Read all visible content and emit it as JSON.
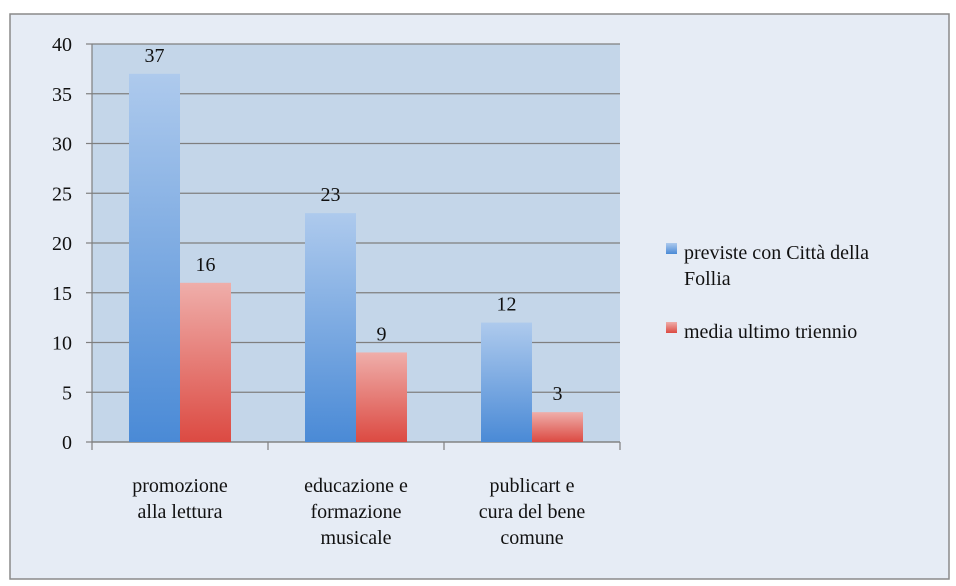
{
  "chart_data": {
    "type": "bar",
    "categories": [
      "promozione\nalla lettura",
      "educazione e\nformazione\nmusicale",
      "publicart e\ncura del bene\ncomune"
    ],
    "series": [
      {
        "name": "previste con Città della\nFollia",
        "color": "#4a8ad6",
        "values": [
          37,
          23,
          12
        ]
      },
      {
        "name": "media ultimo triennio",
        "color": "#dc4a42",
        "values": [
          16,
          9,
          3
        ]
      }
    ],
    "ylim": [
      0,
      40
    ],
    "yticks": [
      0,
      5,
      10,
      15,
      20,
      25,
      30,
      35,
      40
    ],
    "grid": true,
    "legend": "right",
    "data_labels": true
  }
}
